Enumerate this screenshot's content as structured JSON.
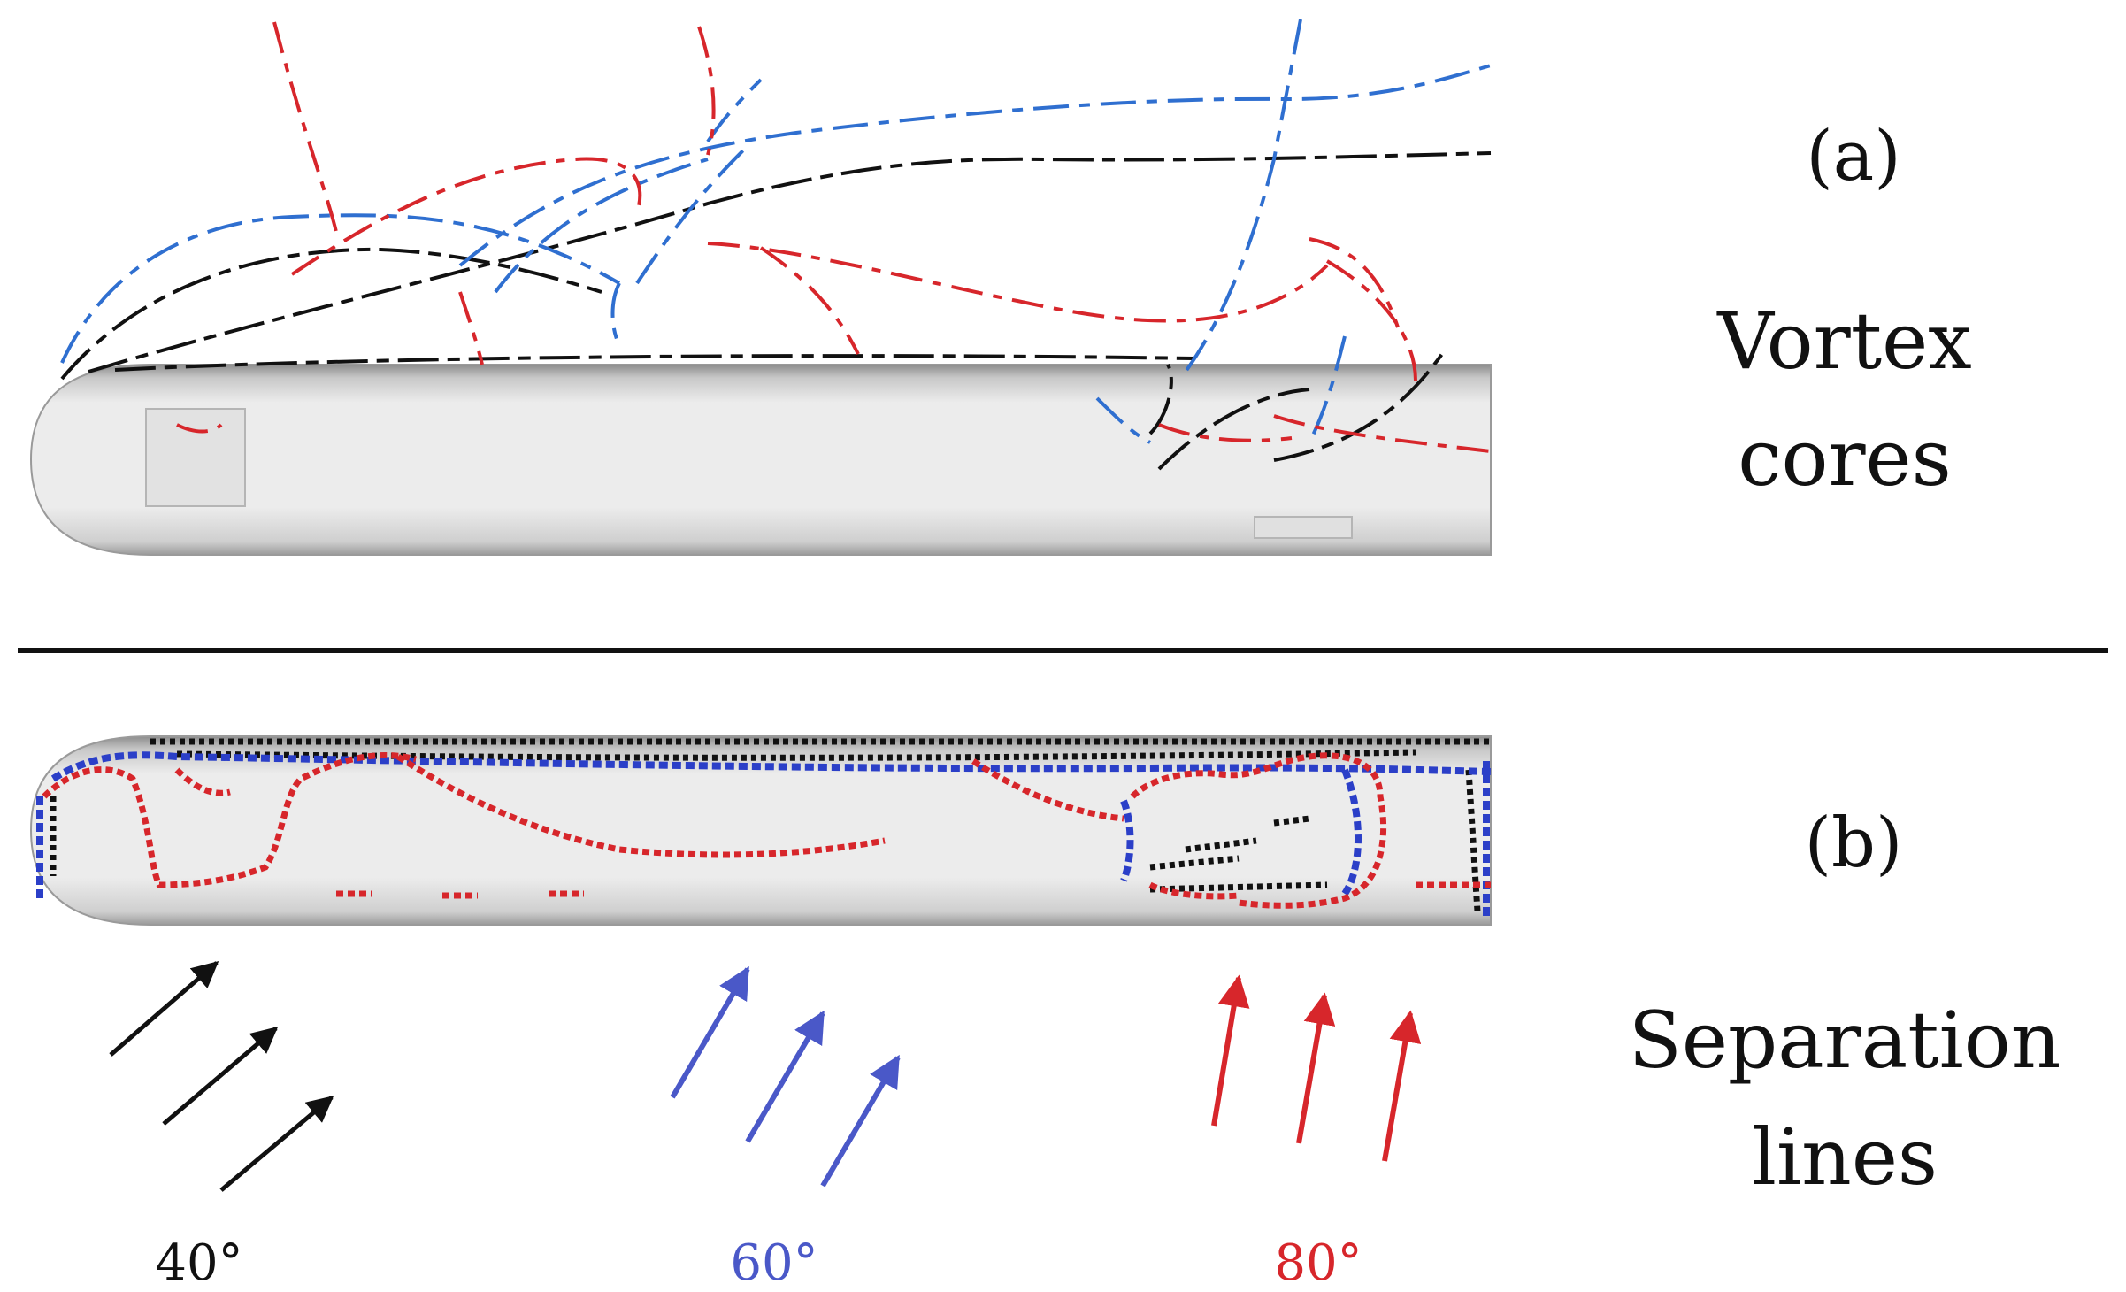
{
  "panel_a": {
    "label": "(a)",
    "caption_line1": "Vortex",
    "caption_line2": "cores"
  },
  "panel_b": {
    "label": "(b)",
    "caption_line1": "Separation",
    "caption_line2": "lines"
  },
  "angles": [
    {
      "label": "40°",
      "color": "#111111"
    },
    {
      "label": "60°",
      "color": "#4a58c8"
    },
    {
      "label": "80°",
      "color": "#d7262b"
    }
  ],
  "colors": {
    "black_series": "#111111",
    "blue_series": "#2f6fd0",
    "red_series": "#d7262b",
    "body_fill": "#ebebeb"
  }
}
